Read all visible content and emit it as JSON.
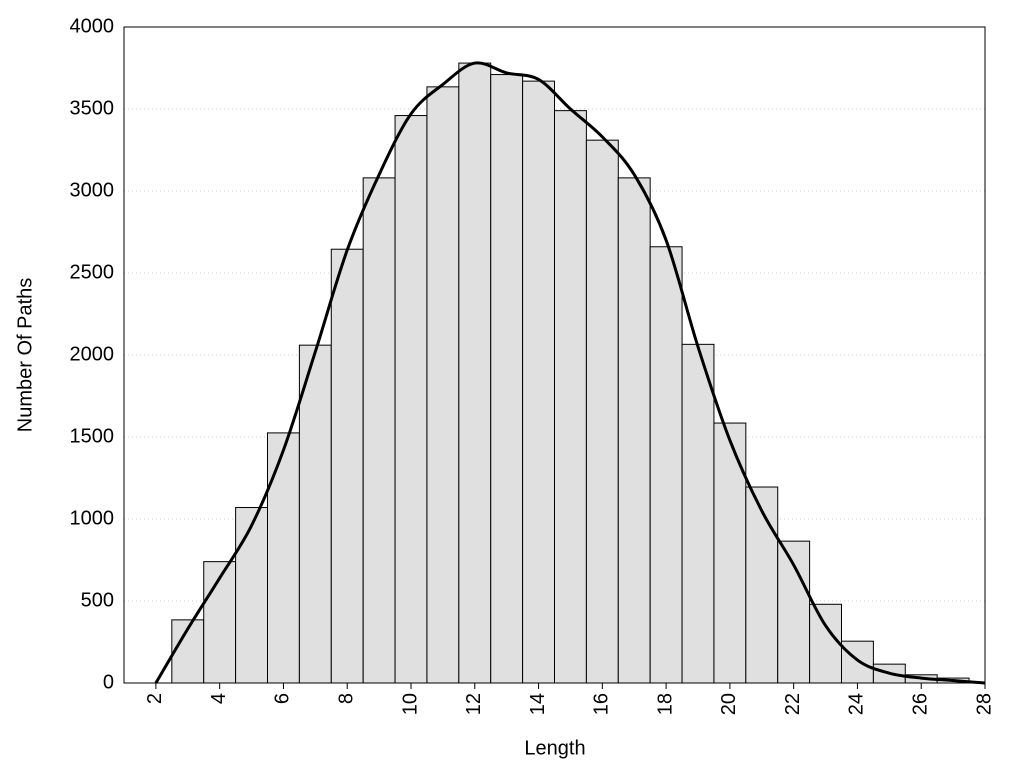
{
  "chart_data": {
    "type": "histogram",
    "xlabel": "Length",
    "ylabel": "Number Of Paths",
    "bins": [
      2.5,
      3.5,
      4.5,
      5.5,
      6.5,
      7.5,
      8.5,
      9.5,
      10.5,
      11.5,
      12.5,
      13.5,
      14.5,
      15.5,
      16.5,
      17.5,
      18.5,
      19.5,
      20.5,
      21.5,
      22.5,
      23.5,
      24.5,
      25.5,
      26.5,
      27.5
    ],
    "values": [
      385,
      740,
      1070,
      1525,
      2060,
      2645,
      3080,
      3460,
      3635,
      3780,
      3710,
      3670,
      3490,
      3310,
      3080,
      2660,
      2065,
      1585,
      1195,
      865,
      480,
      255,
      115,
      50,
      30
    ],
    "color": "#e0e0e0",
    "curve": {
      "x": [
        2,
        3,
        4,
        5,
        6,
        7,
        8,
        9,
        10,
        11,
        12,
        13,
        14,
        15,
        16,
        17,
        18,
        19,
        20,
        21,
        22,
        23,
        24,
        25,
        26,
        27,
        28
      ],
      "values": [
        0,
        330,
        640,
        960,
        1420,
        2020,
        2640,
        3100,
        3470,
        3650,
        3780,
        3720,
        3680,
        3500,
        3330,
        3100,
        2700,
        2050,
        1480,
        1050,
        720,
        350,
        140,
        60,
        30,
        15,
        0
      ],
      "color": "#000000"
    },
    "xlim": [
      1,
      28
    ],
    "ylim": [
      0,
      4000
    ],
    "xticks": [
      2,
      4,
      6,
      8,
      10,
      12,
      14,
      16,
      18,
      20,
      22,
      24,
      26,
      28
    ],
    "yticks": [
      0,
      500,
      1000,
      1500,
      2000,
      2500,
      3000,
      3500,
      4000
    ],
    "grid": true
  }
}
